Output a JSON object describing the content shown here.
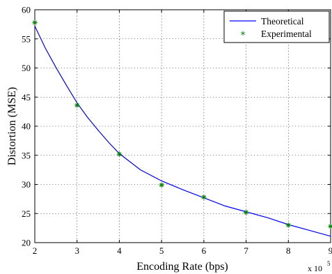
{
  "chart_data": {
    "type": "line",
    "title": "",
    "xlabel": "Encoding Rate (bps)",
    "ylabel": "Distortion (MSE)",
    "x_exponent_label": "x 10",
    "x_exponent_power": "5",
    "xlim": [
      2,
      9
    ],
    "ylim": [
      20,
      60
    ],
    "x_ticks": [
      2,
      3,
      4,
      5,
      6,
      7,
      8,
      9
    ],
    "y_ticks": [
      20,
      25,
      30,
      35,
      40,
      45,
      50,
      55,
      60
    ],
    "grid": true,
    "legend_position": "top-right",
    "series": [
      {
        "name": "Theoretical",
        "style": "line",
        "color": "#0000ff",
        "x": [
          2,
          2.25,
          2.5,
          2.75,
          3,
          3.25,
          3.5,
          3.75,
          4,
          4.5,
          5,
          5.5,
          6,
          6.5,
          7,
          7.5,
          8,
          8.5,
          9
        ],
        "y": [
          57.2,
          53.4,
          50.1,
          47.0,
          44.0,
          41.5,
          39.3,
          37.2,
          35.3,
          32.5,
          30.6,
          29.1,
          27.7,
          26.3,
          25.3,
          24.3,
          23.1,
          22.1,
          21.1
        ]
      },
      {
        "name": "Experimental",
        "style": "marker",
        "marker": "*",
        "color": "#008000",
        "x": [
          2,
          3,
          4,
          5,
          6,
          7,
          8,
          9
        ],
        "y": [
          57.8,
          43.6,
          35.2,
          29.9,
          27.8,
          25.2,
          23.0,
          22.8
        ]
      }
    ]
  }
}
